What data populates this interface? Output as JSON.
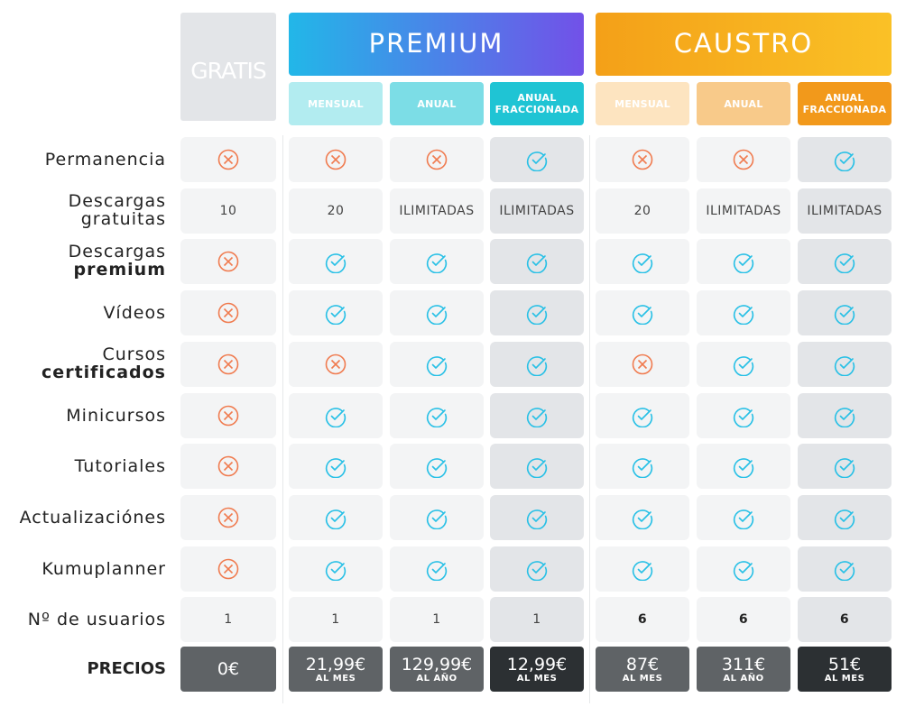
{
  "headers": {
    "gratis": "GRATIS",
    "premium": "PREMIUM",
    "caustro": "CAUSTRO"
  },
  "subheaders": {
    "premium": [
      "MENSUAL",
      "ANUAL",
      "ANUAL FRACCIONADA"
    ],
    "caustro": [
      "MENSUAL",
      "ANUAL",
      "ANUAL FRACCIONADA"
    ]
  },
  "colors": {
    "premium_gradient": [
      "#22b7e8",
      "#7251e8"
    ],
    "caustro_gradient": [
      "#f4a018",
      "#fac126"
    ],
    "cross": "#f07b4f",
    "check": "#27c0e6",
    "price_gray": "#5f6366",
    "price_dark": "#2c3033"
  },
  "rows": [
    {
      "label": [
        "Permanencia"
      ],
      "values": [
        "x",
        "x",
        "x",
        "check",
        "x",
        "x",
        "check"
      ]
    },
    {
      "label": [
        "Descargas",
        "gratuitas"
      ],
      "values": [
        "10",
        "20",
        "ILIMITADAS",
        "ILIMITADAS",
        "20",
        "ILIMITADAS",
        "ILIMITADAS"
      ]
    },
    {
      "label": [
        "Descargas",
        "premium"
      ],
      "values": [
        "x",
        "check",
        "check",
        "check",
        "check",
        "check",
        "check"
      ]
    },
    {
      "label": [
        "Vídeos"
      ],
      "values": [
        "x",
        "check",
        "check",
        "check",
        "check",
        "check",
        "check"
      ]
    },
    {
      "label": [
        "Cursos",
        "certificados"
      ],
      "values": [
        "x",
        "x",
        "check",
        "check",
        "x",
        "check",
        "check"
      ]
    },
    {
      "label": [
        "Minicursos"
      ],
      "values": [
        "x",
        "check",
        "check",
        "check",
        "check",
        "check",
        "check"
      ]
    },
    {
      "label": [
        "Tutoriales"
      ],
      "values": [
        "x",
        "check",
        "check",
        "check",
        "check",
        "check",
        "check"
      ]
    },
    {
      "label": [
        "Actualizaciónes"
      ],
      "values": [
        "x",
        "check",
        "check",
        "check",
        "check",
        "check",
        "check"
      ]
    },
    {
      "label": [
        "Kumuplanner"
      ],
      "values": [
        "x",
        "check",
        "check",
        "check",
        "check",
        "check",
        "check"
      ]
    },
    {
      "label": [
        "Nº de usuarios"
      ],
      "values": [
        "1",
        "1",
        "1",
        "1",
        "6",
        "6",
        "6"
      ]
    }
  ],
  "prices": {
    "label": "PRECIOS",
    "items": [
      {
        "amount": "0€",
        "period": ""
      },
      {
        "amount": "21,99€",
        "period": "AL MES"
      },
      {
        "amount": "129,99€",
        "period": "AL AÑO"
      },
      {
        "amount": "12,99€",
        "period": "AL MES"
      },
      {
        "amount": "87€",
        "period": "AL MES"
      },
      {
        "amount": "311€",
        "period": "AL AÑO"
      },
      {
        "amount": "51€",
        "period": "AL MES"
      }
    ]
  }
}
